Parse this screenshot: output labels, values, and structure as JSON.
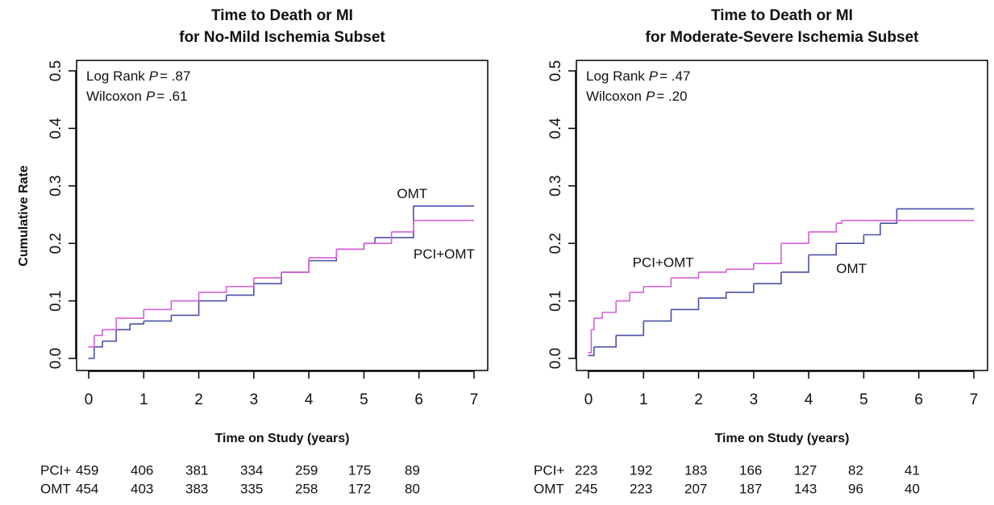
{
  "chart_data": [
    {
      "type": "step",
      "title": [
        "Time to Death or MI",
        "for No-Mild Ischemia Subset"
      ],
      "xlabel": "Time on Study (years)",
      "ylabel": "Cumulative Rate",
      "xlim": [
        0,
        7
      ],
      "xticks": [
        0,
        1,
        2,
        3,
        4,
        5,
        6,
        7
      ],
      "ylim": [
        0,
        0.5
      ],
      "yticks": [
        {
          "value": 0,
          "label": "0.0"
        },
        0.1,
        0.2,
        0.3,
        0.4,
        0.5
      ],
      "stats": [
        {
          "label": "Log Rank",
          "p": "P",
          "value": "= .87"
        },
        {
          "label": "Wilcoxon",
          "p": "P",
          "value": "= .61"
        }
      ],
      "series": [
        {
          "name": "OMT",
          "color": "#4b4fa8",
          "x": [
            0,
            0.1,
            0.25,
            0.5,
            0.75,
            1,
            1.5,
            2,
            2.5,
            3,
            3.5,
            4,
            4.5,
            5,
            5.2,
            5.9,
            7
          ],
          "values": [
            0,
            0.02,
            0.03,
            0.05,
            0.06,
            0.065,
            0.075,
            0.1,
            0.11,
            0.13,
            0.15,
            0.17,
            0.19,
            0.2,
            0.21,
            0.265,
            0.265
          ]
        },
        {
          "name": "PCI+OMT",
          "color": "#d65fd6",
          "x": [
            0,
            0.1,
            0.25,
            0.5,
            1,
            1.5,
            2,
            2.5,
            3,
            3.5,
            4,
            4.5,
            5,
            5.5,
            5.9,
            7
          ],
          "values": [
            0.02,
            0.04,
            0.05,
            0.07,
            0.085,
            0.1,
            0.115,
            0.125,
            0.14,
            0.15,
            0.175,
            0.19,
            0.2,
            0.22,
            0.24,
            0.24
          ]
        }
      ],
      "risk_table": [
        {
          "label": "PCI+",
          "values": [
            459,
            406,
            381,
            334,
            259,
            175,
            89
          ]
        },
        {
          "label": "OMT",
          "values": [
            454,
            403,
            383,
            335,
            258,
            172,
            80
          ]
        }
      ]
    },
    {
      "type": "step",
      "title": [
        "Time to Death or MI",
        "for Moderate-Severe Ischemia Subset"
      ],
      "xlabel": "Time on Study (years)",
      "xlim": [
        0,
        7
      ],
      "xticks": [
        0,
        1,
        2,
        3,
        4,
        5,
        6,
        7
      ],
      "ylim": [
        0,
        0.5
      ],
      "yticks": [
        {
          "value": 0,
          "label": "0.0"
        },
        0.1,
        0.2,
        0.3,
        0.4,
        0.5
      ],
      "stats": [
        {
          "label": "Log Rank",
          "p": "P",
          "value": "= .47"
        },
        {
          "label": "Wilcoxon",
          "p": "P",
          "value": "= .20"
        }
      ],
      "series": [
        {
          "name": "OMT",
          "color": "#4b4fa8",
          "x": [
            0,
            0.1,
            0.5,
            1,
            1.5,
            2,
            2.5,
            3,
            3.5,
            4,
            4.5,
            5,
            5.3,
            5.6,
            7
          ],
          "values": [
            0.005,
            0.02,
            0.04,
            0.065,
            0.085,
            0.105,
            0.115,
            0.13,
            0.15,
            0.18,
            0.2,
            0.215,
            0.235,
            0.26,
            0.26
          ]
        },
        {
          "name": "PCI+OMT",
          "color": "#d65fd6",
          "x": [
            0,
            0.05,
            0.1,
            0.25,
            0.5,
            0.75,
            1,
            1.5,
            2,
            2.5,
            3,
            3.5,
            4,
            4.5,
            4.6,
            7
          ],
          "values": [
            0.01,
            0.05,
            0.07,
            0.08,
            0.1,
            0.115,
            0.125,
            0.14,
            0.15,
            0.155,
            0.165,
            0.2,
            0.22,
            0.235,
            0.24,
            0.24
          ]
        }
      ],
      "risk_table": [
        {
          "label": "PCI+",
          "values": [
            223,
            192,
            183,
            166,
            127,
            82,
            41
          ]
        },
        {
          "label": "OMT",
          "values": [
            245,
            223,
            207,
            187,
            143,
            96,
            40
          ]
        }
      ]
    }
  ]
}
